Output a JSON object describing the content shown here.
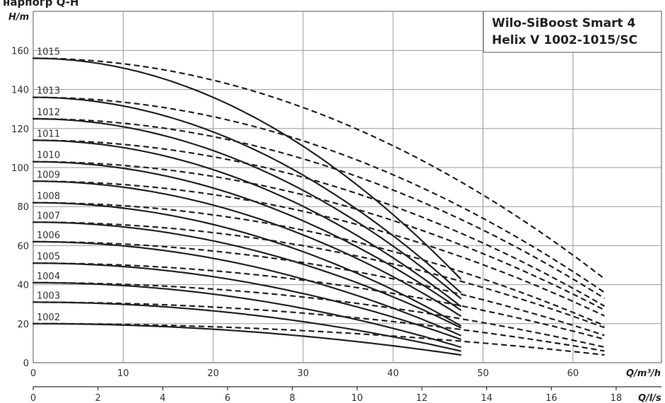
{
  "cut_title": "нарпогр Q-H",
  "chart_data": {
    "type": "line",
    "title": [
      "Wilo-SiBoost Smart 4",
      "Helix V 1002-1015/SC"
    ],
    "ylabel": "H/m",
    "xlabel": "Q/m³/h",
    "xlabel2": "Q/l/s",
    "xlim": [
      0,
      70
    ],
    "ylim": [
      0,
      170
    ],
    "x_ticks": [
      0,
      10,
      20,
      30,
      40,
      50,
      60
    ],
    "y_ticks": [
      0,
      20,
      40,
      60,
      80,
      100,
      120,
      140,
      160
    ],
    "x2_ticks": [
      0,
      2,
      4,
      6,
      8,
      10,
      12,
      14,
      16,
      18
    ],
    "grid": true,
    "legend_position": "top-right",
    "solid_style": "solid",
    "dashed_style": "dashed",
    "series": [
      {
        "name": "1002",
        "h0": 20,
        "solid_end": [
          47.5,
          4
        ],
        "dashed_end": [
          63.5,
          4
        ]
      },
      {
        "name": "1003",
        "h0": 31,
        "solid_end": [
          47.5,
          6
        ],
        "dashed_end": [
          63.5,
          6
        ]
      },
      {
        "name": "1004",
        "h0": 41,
        "solid_end": [
          47.5,
          8
        ],
        "dashed_end": [
          63.5,
          8
        ]
      },
      {
        "name": "1005",
        "h0": 51,
        "solid_end": [
          47.5,
          12
        ],
        "dashed_end": [
          63.5,
          12
        ]
      },
      {
        "name": "1006",
        "h0": 62,
        "solid_end": [
          47.5,
          14
        ],
        "dashed_end": [
          63.5,
          14
        ]
      },
      {
        "name": "1007",
        "h0": 72,
        "solid_end": [
          47.5,
          18
        ],
        "dashed_end": [
          63.5,
          18
        ]
      },
      {
        "name": "1008",
        "h0": 82,
        "solid_end": [
          47.5,
          19
        ],
        "dashed_end": [
          63.5,
          19
        ]
      },
      {
        "name": "1009",
        "h0": 93,
        "solid_end": [
          47.5,
          24
        ],
        "dashed_end": [
          63.5,
          24
        ]
      },
      {
        "name": "1010",
        "h0": 103,
        "solid_end": [
          47.5,
          27
        ],
        "dashed_end": [
          63.5,
          27
        ]
      },
      {
        "name": "1011",
        "h0": 114,
        "solid_end": [
          47.5,
          29
        ],
        "dashed_end": [
          63.5,
          29
        ]
      },
      {
        "name": "1012",
        "h0": 125,
        "solid_end": [
          47.5,
          33
        ],
        "dashed_end": [
          63.5,
          33
        ]
      },
      {
        "name": "1013",
        "h0": 136,
        "solid_end": [
          47.5,
          36
        ],
        "dashed_end": [
          63.5,
          36
        ]
      },
      {
        "name": "1015",
        "h0": 156,
        "solid_end": [
          47.5,
          43
        ],
        "dashed_end": [
          63.5,
          43
        ]
      }
    ]
  }
}
